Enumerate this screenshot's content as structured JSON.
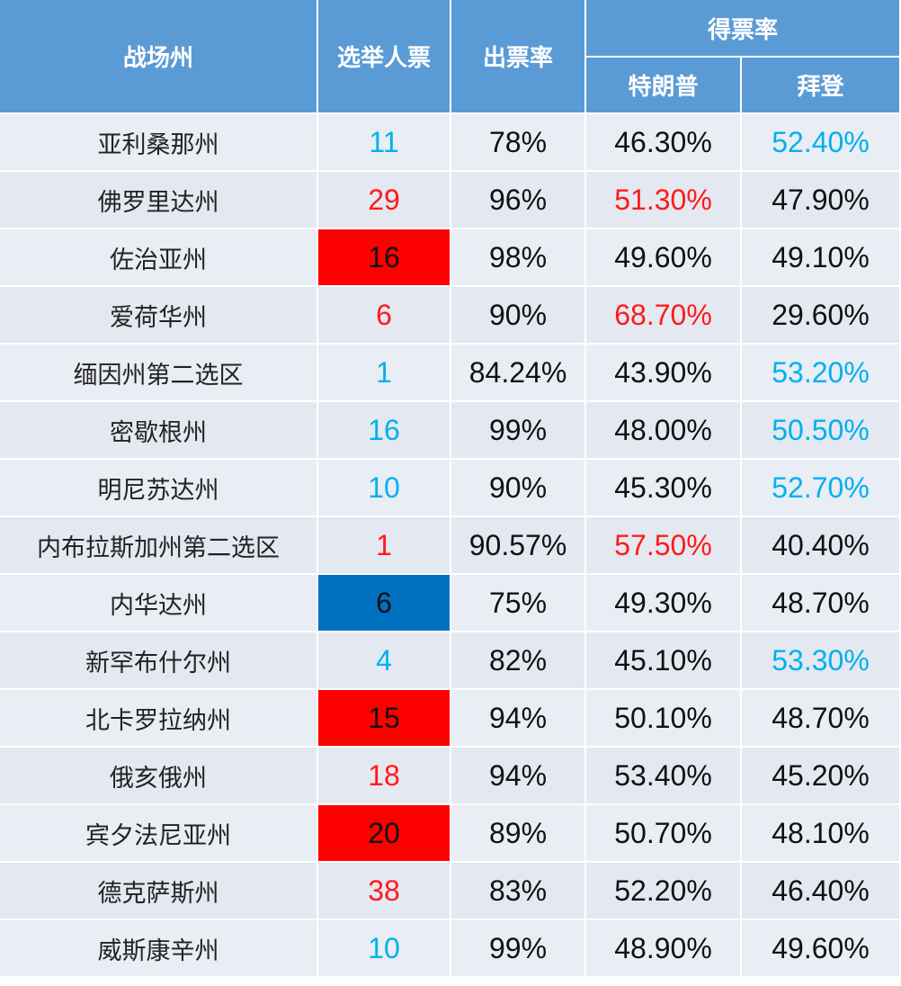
{
  "header": {
    "state": "战场州",
    "electoral_votes": "选举人票",
    "turnout": "出票率",
    "vote_share": "得票率",
    "trump": "特朗普",
    "biden": "拜登"
  },
  "colors": {
    "header_bg": "#5b9bd5",
    "blue_text": "#00b0f0",
    "red_text": "#ff1a1a",
    "red_fill": "#ff0000",
    "blue_fill": "#0070c0"
  },
  "rows": [
    {
      "state": "亚利桑那州",
      "votes": "11",
      "turnout": "78%",
      "trump": "46.30%",
      "biden": "52.40%"
    },
    {
      "state": "佛罗里达州",
      "votes": "29",
      "turnout": "96%",
      "trump": "51.30%",
      "biden": "47.90%"
    },
    {
      "state": "佐治亚州",
      "votes": "16",
      "turnout": "98%",
      "trump": "49.60%",
      "biden": "49.10%"
    },
    {
      "state": "爱荷华州",
      "votes": "6",
      "turnout": "90%",
      "trump": "68.70%",
      "biden": "29.60%"
    },
    {
      "state": "缅因州第二选区",
      "votes": "1",
      "turnout": "84.24%",
      "trump": "43.90%",
      "biden": "53.20%"
    },
    {
      "state": "密歇根州",
      "votes": "16",
      "turnout": "99%",
      "trump": "48.00%",
      "biden": "50.50%"
    },
    {
      "state": "明尼苏达州",
      "votes": "10",
      "turnout": "90%",
      "trump": "45.30%",
      "biden": "52.70%"
    },
    {
      "state": "内布拉斯加州第二选区",
      "votes": "1",
      "turnout": "90.57%",
      "trump": "57.50%",
      "biden": "40.40%"
    },
    {
      "state": "内华达州",
      "votes": "6",
      "turnout": "75%",
      "trump": "49.30%",
      "biden": "48.70%"
    },
    {
      "state": "新罕布什尔州",
      "votes": "4",
      "turnout": "82%",
      "trump": "45.10%",
      "biden": "53.30%"
    },
    {
      "state": "北卡罗拉纳州",
      "votes": "15",
      "turnout": "94%",
      "trump": "50.10%",
      "biden": "48.70%"
    },
    {
      "state": "俄亥俄州",
      "votes": "18",
      "turnout": "94%",
      "trump": "53.40%",
      "biden": "45.20%"
    },
    {
      "state": "宾夕法尼亚州",
      "votes": "20",
      "turnout": "89%",
      "trump": "50.70%",
      "biden": "48.10%"
    },
    {
      "state": "德克萨斯州",
      "votes": "38",
      "turnout": "83%",
      "trump": "52.20%",
      "biden": "46.40%"
    },
    {
      "state": "威斯康辛州",
      "votes": "10",
      "turnout": "99%",
      "trump": "48.90%",
      "biden": "49.60%"
    }
  ]
}
